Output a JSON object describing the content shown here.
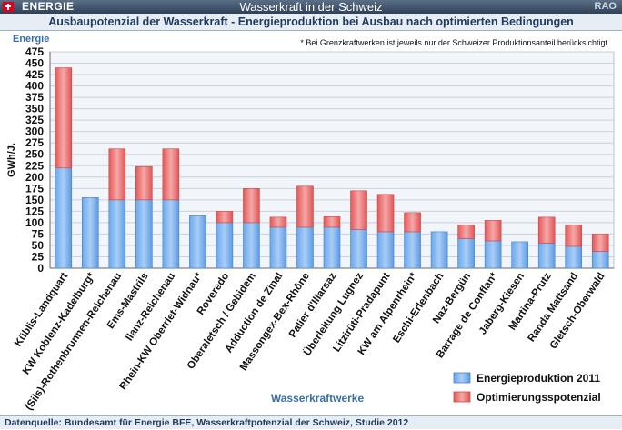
{
  "header": {
    "brand": "ENERGIE",
    "app_title": "Wasserkraft in der Schweiz",
    "corner_label": "RAO",
    "subtitle": "Ausbaupotenzial der Wasserkraft - Energieproduktion bei Ausbau nach optimierten Bedingungen"
  },
  "footer": {
    "source": "Datenquelle: Bundesamt für Energie BFE,  Wasserkraftpotenzial der Schweiz, Studie  2012"
  },
  "chart_data": {
    "type": "bar",
    "stacked": true,
    "title": "Energie",
    "note": "* Bei Grenzkraftwerken ist jeweils nur der Schweizer Produktionsanteil berücksichtigt",
    "xlabel": "Wasserkraftwerke",
    "ylabel": "GWh/J.",
    "ylim": [
      0,
      475
    ],
    "ytick_step": 25,
    "grid": true,
    "legend_position": "bottom-right",
    "categories": [
      "Küblis-Landquart",
      "KW Koblenz-Kadelburg*",
      "(Sils)-Rothenbrunnen-Reichenau",
      "Ems-Mastrils",
      "Ilanz-Reichenau",
      "Rhein-KW Oberriet-Widnau*",
      "Roveredo",
      "Oberaletsch / Gebidem",
      "Adduction de Zinal",
      "Massongex-Bex-Rhône",
      "Palier d'Illarsaz",
      "Überleitung Lugnez",
      "Litzirüti-Pradapunt",
      "KW am Alpenrhein*",
      "Eschi-Erlenbach",
      "Naz-Bergün",
      "Barrage de Conflan*",
      "Jaberg-Kiesen",
      "Martina-Prutz",
      "Randa Mattsand",
      "Gletsch-Oberwald"
    ],
    "series": [
      {
        "name": "Energieproduktion 2011",
        "color": "#4f93e0",
        "values": [
          220,
          155,
          150,
          150,
          150,
          115,
          100,
          100,
          90,
          90,
          90,
          85,
          80,
          80,
          80,
          65,
          60,
          58,
          55,
          48,
          37
        ]
      },
      {
        "name": "Optimierungsspotenzial",
        "color": "#e86060",
        "values": [
          220,
          0,
          112,
          73,
          112,
          0,
          25,
          75,
          22,
          90,
          23,
          85,
          82,
          42,
          0,
          30,
          45,
          0,
          57,
          47,
          38
        ]
      }
    ]
  }
}
